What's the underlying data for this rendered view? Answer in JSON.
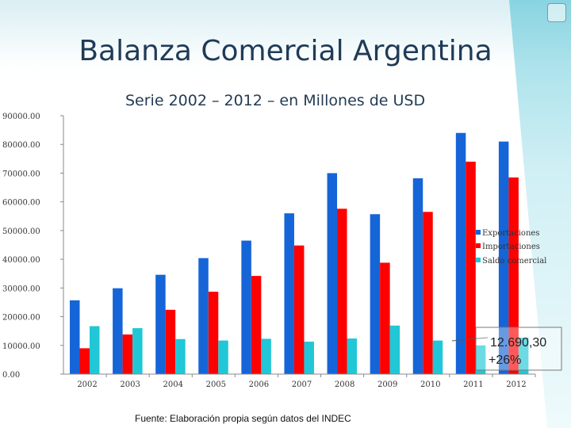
{
  "title": "Balanza Comercial Argentina",
  "subtitle": "Serie  2002 – 2012 – en Millones de USD",
  "source": "Fuente:  Elaboración propia según datos del INDEC",
  "annotation": {
    "line1": "12.690,30",
    "line2": "+26%"
  },
  "colors": {
    "exportaciones": "#1565d8",
    "importaciones": "#ff0000",
    "saldo": "#21c7d6"
  },
  "chart_data": {
    "type": "bar",
    "title": "",
    "xlabel": "",
    "ylabel": "",
    "categories": [
      "2002",
      "2003",
      "2004",
      "2005",
      "2006",
      "2007",
      "2008",
      "2009",
      "2010",
      "2011",
      "2012"
    ],
    "series": [
      {
        "name": "Exportaciones",
        "values": [
          25700,
          29900,
          34600,
          40400,
          46500,
          56000,
          70000,
          55700,
          68200,
          84000,
          81000
        ]
      },
      {
        "name": "Importaciones",
        "values": [
          9000,
          13800,
          22400,
          28700,
          34200,
          44800,
          57600,
          38800,
          56500,
          74000,
          68500
        ]
      },
      {
        "name": "Saldo comercial",
        "values": [
          16700,
          16000,
          12200,
          11700,
          12300,
          11300,
          12400,
          16900,
          11700,
          10000,
          12700
        ]
      }
    ],
    "ylim": [
      0,
      90000
    ],
    "yticks": [
      "0.00",
      "10000.00",
      "20000.00",
      "30000.00",
      "40000.00",
      "50000.00",
      "60000.00",
      "70000.00",
      "80000.00",
      "90000.00"
    ],
    "legend_position": "right"
  }
}
